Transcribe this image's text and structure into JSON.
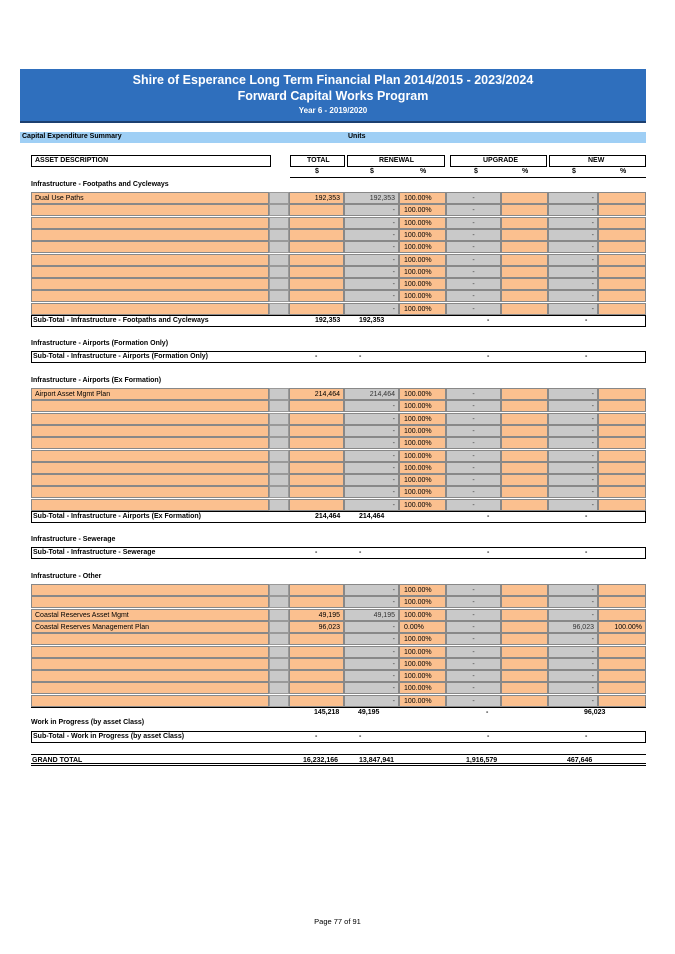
{
  "banner": {
    "line1": "Shire of Esperance Long Term Financial Plan 2014/2015 - 2023/2024",
    "line2": "Forward Capital Works Program",
    "line3": "Year 6 - 2019/2020"
  },
  "summary": {
    "label": "Capital Expenditure Summary",
    "units": "Units"
  },
  "headers": {
    "asset_description": "ASSET DESCRIPTION",
    "total": "TOTAL",
    "renewal": "RENEWAL",
    "upgrade": "UPGRADE",
    "new": "NEW",
    "units": [
      "$",
      "$",
      "%",
      "$",
      "%",
      "$",
      "%"
    ]
  },
  "sections": [
    {
      "title": "Infrastructure - Footpaths and Cycleways",
      "rows": [
        {
          "desc": "Dual Use Paths",
          "total": "192,353",
          "renewal": "192,353",
          "renewal_pct": "100.00%",
          "upgrade": "-",
          "new": "-",
          "new_pct": ""
        },
        {
          "desc": "",
          "total": "",
          "renewal": "-",
          "renewal_pct": "100.00%",
          "upgrade": "-",
          "new": "-",
          "new_pct": ""
        },
        {
          "desc": "",
          "total": "",
          "renewal": "-",
          "renewal_pct": "100.00%",
          "upgrade": "-",
          "new": "-",
          "new_pct": ""
        },
        {
          "desc": "",
          "total": "",
          "renewal": "-",
          "renewal_pct": "100.00%",
          "upgrade": "-",
          "new": "-",
          "new_pct": ""
        },
        {
          "desc": "",
          "total": "",
          "renewal": "-",
          "renewal_pct": "100.00%",
          "upgrade": "-",
          "new": "-",
          "new_pct": ""
        },
        {
          "desc": "",
          "total": "",
          "renewal": "-",
          "renewal_pct": "100.00%",
          "upgrade": "-",
          "new": "-",
          "new_pct": ""
        },
        {
          "desc": "",
          "total": "",
          "renewal": "-",
          "renewal_pct": "100.00%",
          "upgrade": "-",
          "new": "-",
          "new_pct": ""
        },
        {
          "desc": "",
          "total": "",
          "renewal": "-",
          "renewal_pct": "100.00%",
          "upgrade": "-",
          "new": "-",
          "new_pct": ""
        },
        {
          "desc": "",
          "total": "",
          "renewal": "-",
          "renewal_pct": "100.00%",
          "upgrade": "-",
          "new": "-",
          "new_pct": ""
        },
        {
          "desc": "",
          "total": "",
          "renewal": "-",
          "renewal_pct": "100.00%",
          "upgrade": "-",
          "new": "-",
          "new_pct": ""
        }
      ],
      "subtotal": {
        "label": "Sub-Total - Infrastructure - Footpaths and Cycleways",
        "total": "192,353",
        "renewal": "192,353",
        "upgrade": "-",
        "new": "-"
      }
    },
    {
      "title": "Infrastructure - Airports (Formation Only)",
      "rows": [],
      "subtotal": {
        "label": "Sub-Total - Infrastructure - Airports (Formation Only)",
        "total": "-",
        "renewal": "-",
        "upgrade": "-",
        "new": "-"
      }
    },
    {
      "title": "Infrastructure - Airports (Ex Formation)",
      "rows": [
        {
          "desc": "Airport Asset Mgmt Plan",
          "total": "214,464",
          "renewal": "214,464",
          "renewal_pct": "100.00%",
          "upgrade": "-",
          "new": "-",
          "new_pct": ""
        },
        {
          "desc": "",
          "total": "",
          "renewal": "-",
          "renewal_pct": "100.00%",
          "upgrade": "-",
          "new": "-",
          "new_pct": ""
        },
        {
          "desc": "",
          "total": "",
          "renewal": "-",
          "renewal_pct": "100.00%",
          "upgrade": "-",
          "new": "-",
          "new_pct": ""
        },
        {
          "desc": "",
          "total": "",
          "renewal": "-",
          "renewal_pct": "100.00%",
          "upgrade": "-",
          "new": "-",
          "new_pct": ""
        },
        {
          "desc": "",
          "total": "",
          "renewal": "-",
          "renewal_pct": "100.00%",
          "upgrade": "-",
          "new": "-",
          "new_pct": ""
        },
        {
          "desc": "",
          "total": "",
          "renewal": "-",
          "renewal_pct": "100.00%",
          "upgrade": "-",
          "new": "-",
          "new_pct": ""
        },
        {
          "desc": "",
          "total": "",
          "renewal": "-",
          "renewal_pct": "100.00%",
          "upgrade": "-",
          "new": "-",
          "new_pct": ""
        },
        {
          "desc": "",
          "total": "",
          "renewal": "-",
          "renewal_pct": "100.00%",
          "upgrade": "-",
          "new": "-",
          "new_pct": ""
        },
        {
          "desc": "",
          "total": "",
          "renewal": "-",
          "renewal_pct": "100.00%",
          "upgrade": "-",
          "new": "-",
          "new_pct": ""
        },
        {
          "desc": "",
          "total": "",
          "renewal": "-",
          "renewal_pct": "100.00%",
          "upgrade": "-",
          "new": "-",
          "new_pct": ""
        }
      ],
      "subtotal": {
        "label": "Sub-Total - Infrastructure - Airports (Ex Formation)",
        "total": "214,464",
        "renewal": "214,464",
        "upgrade": "-",
        "new": "-"
      }
    },
    {
      "title": "Infrastructure - Sewerage",
      "rows": [],
      "subtotal": {
        "label": "Sub-Total - Infrastructure - Sewerage",
        "total": "-",
        "renewal": "-",
        "upgrade": "-",
        "new": "-"
      }
    },
    {
      "title": "Infrastructure - Other",
      "rows": [
        {
          "desc": "",
          "total": "",
          "renewal": "-",
          "renewal_pct": "100.00%",
          "upgrade": "-",
          "new": "-",
          "new_pct": ""
        },
        {
          "desc": "",
          "total": "",
          "renewal": "-",
          "renewal_pct": "100.00%",
          "upgrade": "-",
          "new": "-",
          "new_pct": ""
        },
        {
          "desc": "Coastal Reserves Asset Mgmt",
          "total": "49,195",
          "renewal": "49,195",
          "renewal_pct": "100.00%",
          "upgrade": "-",
          "new": "-",
          "new_pct": ""
        },
        {
          "desc": "Coastal Reserves Management Plan",
          "total": "96,023",
          "renewal": "-",
          "renewal_pct": "0.00%",
          "upgrade": "-",
          "new": "96,023",
          "new_pct": "100.00%"
        },
        {
          "desc": "",
          "total": "",
          "renewal": "-",
          "renewal_pct": "100.00%",
          "upgrade": "-",
          "new": "-",
          "new_pct": ""
        },
        {
          "desc": "",
          "total": "",
          "renewal": "-",
          "renewal_pct": "100.00%",
          "upgrade": "-",
          "new": "-",
          "new_pct": ""
        },
        {
          "desc": "",
          "total": "",
          "renewal": "-",
          "renewal_pct": "100.00%",
          "upgrade": "-",
          "new": "-",
          "new_pct": ""
        },
        {
          "desc": "",
          "total": "",
          "renewal": "-",
          "renewal_pct": "100.00%",
          "upgrade": "-",
          "new": "-",
          "new_pct": ""
        },
        {
          "desc": "",
          "total": "",
          "renewal": "-",
          "renewal_pct": "100.00%",
          "upgrade": "-",
          "new": "-",
          "new_pct": ""
        },
        {
          "desc": "",
          "total": "",
          "renewal": "-",
          "renewal_pct": "100.00%",
          "upgrade": "-",
          "new": "-",
          "new_pct": ""
        }
      ],
      "subtotal": {
        "label": "",
        "total": "145,218",
        "renewal": "49,195",
        "upgrade": "-",
        "new": "96,023"
      }
    },
    {
      "title": "Work in Progress (by asset Class)",
      "rows": [],
      "subtotal": {
        "label": "Sub-Total - Work in Progress (by asset Class)",
        "total": "-",
        "renewal": "-",
        "upgrade": "-",
        "new": "-"
      }
    }
  ],
  "grand_total": {
    "label": "GRAND TOTAL",
    "total": "16,232,166",
    "renewal": "13,847,941",
    "upgrade": "1,916,579",
    "new": "467,646"
  },
  "footer": {
    "page": "Page 77 of 91"
  }
}
